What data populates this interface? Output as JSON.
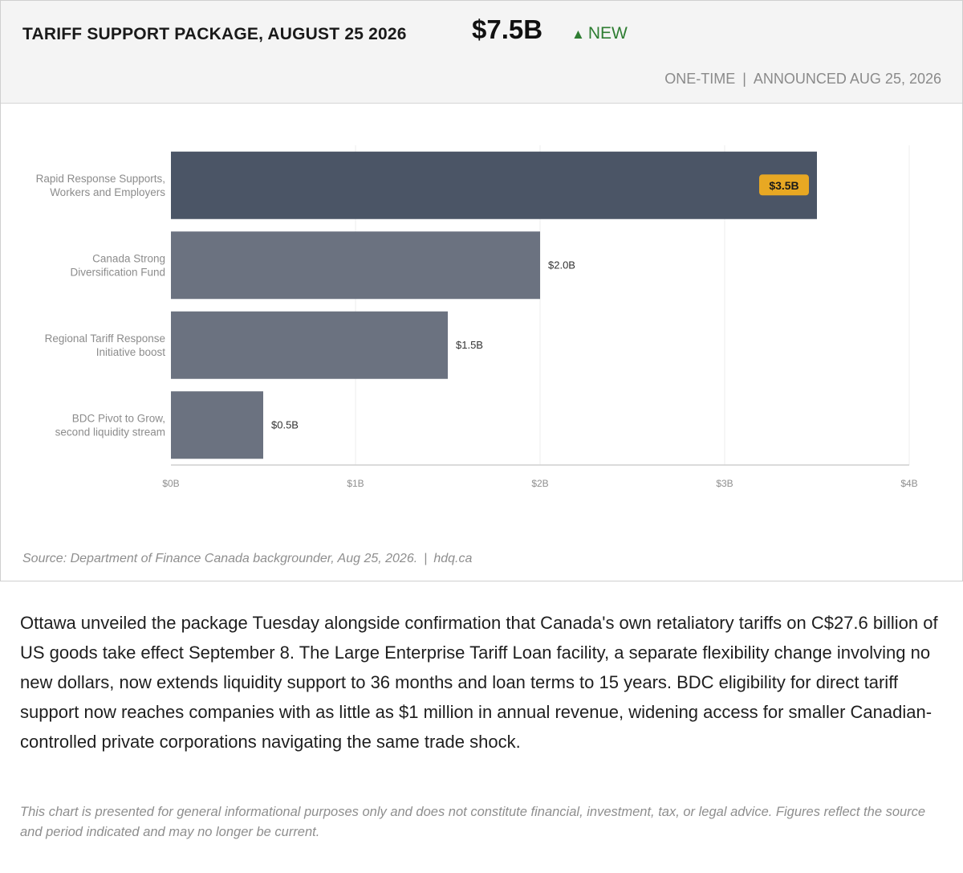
{
  "header": {
    "title": "TARIFF SUPPORT PACKAGE, AUGUST 25 2026",
    "total": "$7.5B",
    "badge_arrow": "▲",
    "badge_text": "NEW",
    "meta_left": "ONE-TIME",
    "meta_sep": "|",
    "meta_right": "ANNOUNCED AUG 25, 2026"
  },
  "colors": {
    "highlight_bar": "#4b5566",
    "bar": "#6b7280",
    "label_badge": "#e8a823",
    "badge_green": "#2e7d32"
  },
  "chart_data": {
    "type": "bar",
    "orientation": "horizontal",
    "categories": [
      [
        "Rapid Response Supports,",
        "Workers and Employers"
      ],
      [
        "Canada Strong",
        "Diversification Fund"
      ],
      [
        "Regional Tariff Response",
        "Initiative boost"
      ],
      [
        "BDC Pivot to Grow,",
        "second liquidity stream"
      ]
    ],
    "values": [
      3.5,
      2.0,
      1.5,
      0.5
    ],
    "value_labels": [
      "$3.5B",
      "$2.0B",
      "$1.5B",
      "$0.5B"
    ],
    "highlight_index": 0,
    "xlim": [
      0,
      4
    ],
    "x_ticks": [
      0,
      1,
      2,
      3,
      4
    ],
    "x_tick_labels": [
      "$0B",
      "$1B",
      "$2B",
      "$3B",
      "$4B"
    ],
    "grid": true,
    "unit": "billions CAD"
  },
  "source": {
    "text": "Source: Department of Finance Canada backgrounder, Aug 25, 2026.",
    "sep": "|",
    "site": "hdq.ca"
  },
  "article": {
    "paragraph": "Ottawa unveiled the package Tuesday alongside confirmation that Canada's own retaliatory tariffs on C$27.6 billion of US goods take effect September 8. The Large Enterprise Tariff Loan facility, a separate flexibility change involving no new dollars, now extends liquidity support to 36 months and loan terms to 15 years. BDC eligibility for direct tariff support now reaches companies with as little as $1 million in annual revenue, widening access for smaller Canadian-controlled private corporations navigating the same trade shock.",
    "disclaimer": "This chart is presented for general informational purposes only and does not constitute financial, investment, tax, or legal advice. Figures reflect the source and period indicated and may no longer be current."
  }
}
